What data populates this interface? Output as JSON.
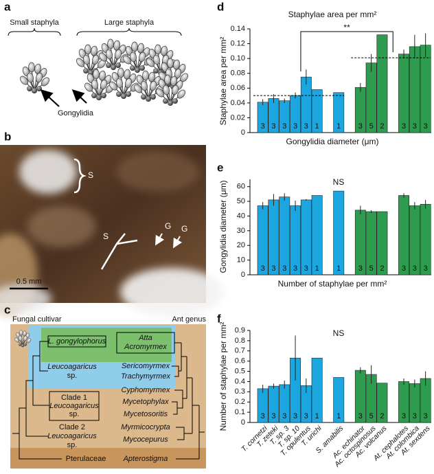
{
  "panels": {
    "a": {
      "letter": "a",
      "small_label": "Small staphyla",
      "large_label": "Large staphyla",
      "arrow_label": "Gongylidia"
    },
    "b": {
      "letter": "b",
      "labels": [
        "S",
        "S",
        "G",
        "G"
      ],
      "scale_bar": "0.5 mm"
    },
    "c": {
      "letter": "c",
      "left_header": "Fungal cultivar",
      "right_header": "Ant genus",
      "cultivars": [
        [
          "L. gongylophorus"
        ],
        [
          "Leucoagaricus",
          "sp."
        ],
        [
          "Clade 1",
          "Leucoagaricus",
          "sp."
        ],
        [
          "Clade 2",
          "Leucoagaricus",
          "sp."
        ],
        [
          "Pterulaceae"
        ]
      ],
      "ant_genera": [
        "Atta",
        "Acromyrmex",
        "Sericomyrmex",
        "Trachymyrmex",
        "Cyphomyrmex",
        "Mycetophylax",
        "Mycetosoritis",
        "Myrmicocrypta",
        "Mycocepurus",
        "Apterostigma"
      ]
    }
  },
  "chart_data": [
    {
      "panel": "d",
      "type": "bar",
      "title": "Staphylae area per mm²",
      "annotation": "**",
      "x_label": "Gongylidia diameter (μm)",
      "y_label": "Staphylae area per mm²",
      "values": [
        0.041,
        0.046,
        0.043,
        0.05,
        0.075,
        0.058,
        0.054,
        0.061,
        0.094,
        0.132,
        0.106,
        0.116,
        0.118
      ],
      "errors": [
        0.004,
        0.006,
        0.003,
        0.004,
        0.01,
        null,
        null,
        0.006,
        0.012,
        null,
        0.006,
        0.016,
        0.016
      ],
      "sample_sizes": [
        3,
        3,
        3,
        3,
        3,
        1,
        1,
        3,
        5,
        2,
        3,
        3,
        3
      ],
      "colors": [
        "#1ca6e0",
        "#1ca6e0",
        "#1ca6e0",
        "#1ca6e0",
        "#1ca6e0",
        "#1ca6e0",
        "#1ca6e0",
        "#2d9c4f",
        "#2d9c4f",
        "#2d9c4f",
        "#2d9c4f",
        "#2d9c4f",
        "#2d9c4f"
      ],
      "group_means": [
        0.05,
        0.101
      ],
      "ylim": [
        0,
        0.14
      ],
      "yticks": [
        0,
        0.02,
        0.04,
        0.06,
        0.08,
        {
          "value": 0.1,
          "label": "0.10"
        },
        0.12,
        0.14
      ]
    },
    {
      "panel": "e",
      "type": "bar",
      "annotation": "NS",
      "x_label": "Number of staphylae per mm²",
      "y_label": "Gongylidia diameter (μm)",
      "values": [
        47,
        51,
        53,
        47,
        51,
        54,
        57,
        44,
        43,
        43,
        54,
        47,
        48
      ],
      "errors": [
        2.5,
        4,
        2.5,
        3.5,
        0.5,
        null,
        null,
        3,
        1,
        null,
        1.5,
        2.5,
        3
      ],
      "sample_sizes": [
        3,
        3,
        3,
        3,
        3,
        1,
        1,
        3,
        5,
        2,
        3,
        3,
        3
      ],
      "colors": [
        "#1ca6e0",
        "#1ca6e0",
        "#1ca6e0",
        "#1ca6e0",
        "#1ca6e0",
        "#1ca6e0",
        "#1ca6e0",
        "#2d9c4f",
        "#2d9c4f",
        "#2d9c4f",
        "#2d9c4f",
        "#2d9c4f",
        "#2d9c4f"
      ],
      "ylim": [
        0,
        65
      ],
      "yticks": [
        0,
        10,
        20,
        30,
        40,
        50,
        60
      ]
    },
    {
      "panel": "f",
      "type": "bar",
      "annotation": "NS",
      "y_label": "Number of staphylae per mm²",
      "categories": [
        "T. cornetzi",
        "T. zeteki",
        "T. sp. 3",
        "T. sp. 10",
        "T. opulentus",
        "T. urichi",
        "S. amabilis",
        "Ac. echinator",
        "Ac. octospinosus",
        "Ac. volcanus",
        "At. cephalotes",
        "At. colombica",
        "At. sexdens"
      ],
      "values": [
        0.33,
        0.355,
        0.37,
        0.63,
        0.36,
        0.63,
        0.44,
        0.51,
        0.47,
        0.385,
        0.4,
        0.38,
        0.43
      ],
      "errors": [
        0.04,
        0.025,
        0.04,
        0.22,
        0.07,
        null,
        null,
        0.03,
        0.09,
        null,
        0.03,
        0.04,
        0.07
      ],
      "sample_sizes": [
        3,
        3,
        3,
        3,
        3,
        1,
        1,
        3,
        5,
        2,
        3,
        3,
        3
      ],
      "colors": [
        "#1ca6e0",
        "#1ca6e0",
        "#1ca6e0",
        "#1ca6e0",
        "#1ca6e0",
        "#1ca6e0",
        "#1ca6e0",
        "#2d9c4f",
        "#2d9c4f",
        "#2d9c4f",
        "#2d9c4f",
        "#2d9c4f",
        "#2d9c4f"
      ],
      "ylim": [
        0,
        0.9
      ],
      "yticks": [
        0,
        0.1,
        0.2,
        0.3,
        0.4,
        0.5,
        0.6,
        0.7,
        0.8,
        0.9
      ]
    }
  ]
}
